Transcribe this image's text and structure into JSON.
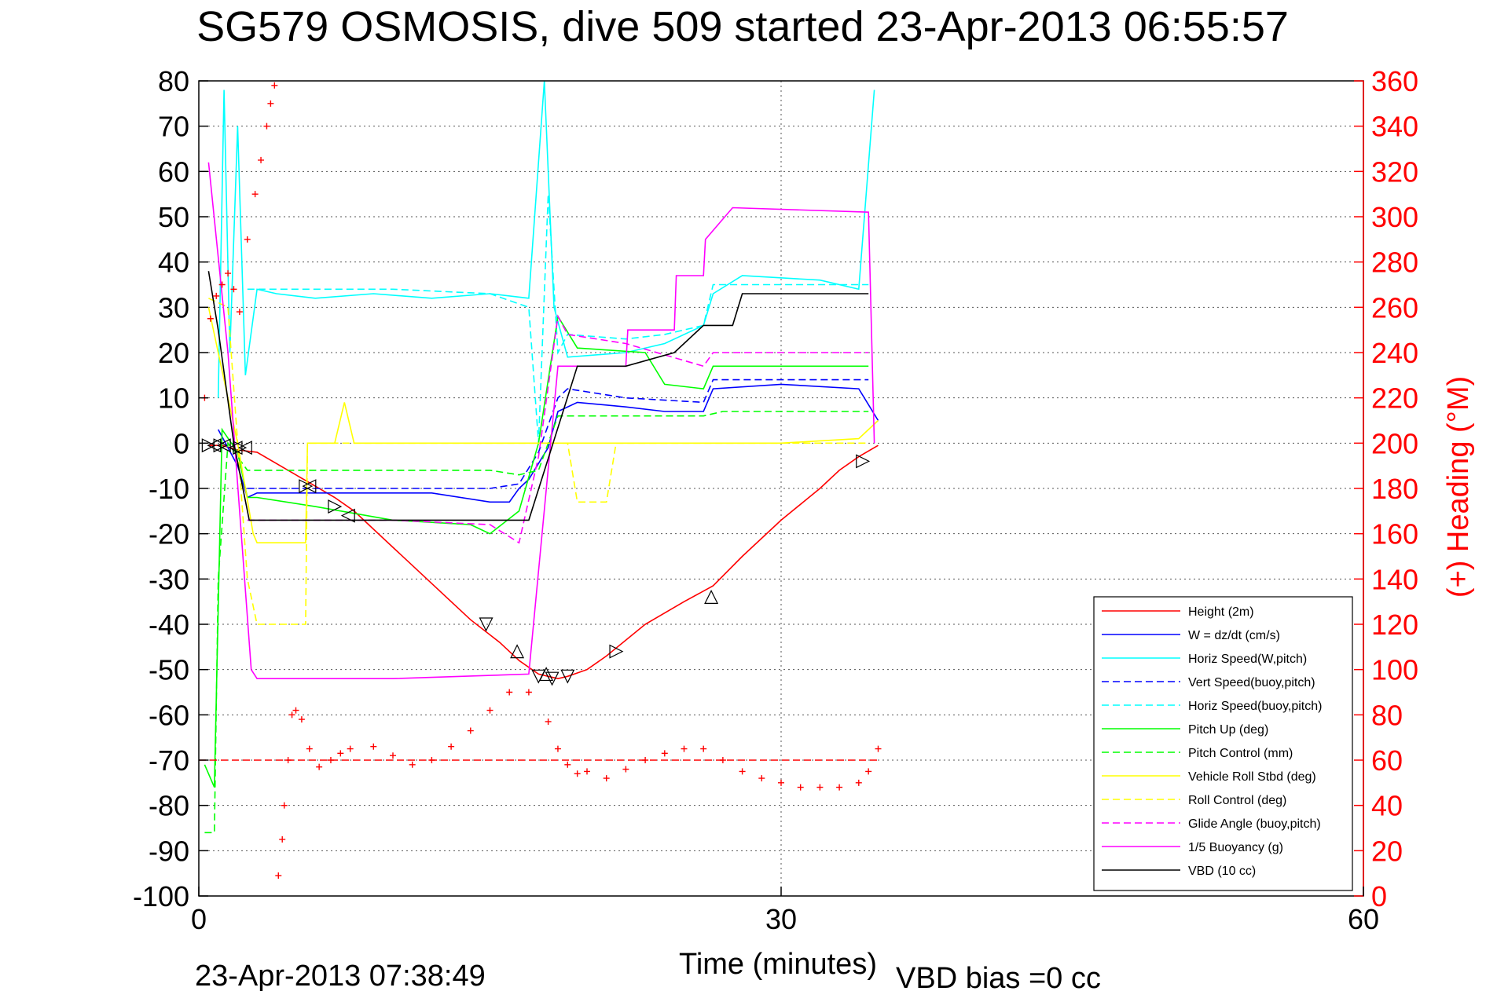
{
  "chart_data": {
    "type": "line",
    "title": "SG579 OSMOSIS, dive 509 started 23-Apr-2013 06:55:57",
    "xlabel": "Time (minutes)",
    "y2label": "(+) Heading (°M)",
    "xlim": [
      0,
      60
    ],
    "ylim": [
      -100,
      80
    ],
    "y2lim": [
      0,
      360
    ],
    "xticks": [
      "0",
      "30",
      "60"
    ],
    "yticks": [
      "80",
      "70",
      "60",
      "50",
      "40",
      "30",
      "20",
      "10",
      "0",
      "-10",
      "-20",
      "-30",
      "-40",
      "-50",
      "-60",
      "-70",
      "-80",
      "-90",
      "-100"
    ],
    "y2ticks": [
      "360",
      "340",
      "320",
      "300",
      "280",
      "260",
      "240",
      "220",
      "200",
      "180",
      "160",
      "140",
      "120",
      "100",
      "80",
      "60",
      "40",
      "20",
      "0"
    ],
    "grid": true,
    "legend_position": "bottom-right",
    "footer_time": "23-Apr-2013 07:38:49",
    "footer_bias": "VBD bias =0 cc",
    "series": [
      {
        "name": "Height (2m)",
        "color": "#ff0000",
        "style": "solid",
        "x": [
          0.5,
          1.2,
          2.0,
          3.0,
          5.0,
          6.0,
          7.0,
          8.0,
          10.0,
          12.0,
          14.0,
          15.5,
          16.5,
          17.5,
          18.0,
          18.5,
          19.0,
          20.0,
          21.0,
          23.0,
          25.0,
          26.5,
          28.0,
          30.0,
          32.0,
          33.0,
          34.0,
          35.0
        ],
        "y": [
          -0.5,
          -0.5,
          -1.5,
          -2,
          -7,
          -9.5,
          -12,
          -15,
          -23,
          -31,
          -39,
          -44,
          -48,
          -51,
          -51.5,
          -52,
          -51.5,
          -50,
          -47,
          -40,
          -35,
          -31.5,
          -25,
          -17,
          -10,
          -6,
          -3,
          -0.5
        ]
      },
      {
        "name": "W = dz/dt (cm/s)",
        "color": "#0000ff",
        "style": "solid",
        "x": [
          1.0,
          1.5,
          2.0,
          2.5,
          3.0,
          5.0,
          8.0,
          12.0,
          15.0,
          16.0,
          16.5,
          17.0,
          18.0,
          18.5,
          19.5,
          22.0,
          24.0,
          26.0,
          26.5,
          30.0,
          34.0,
          35.0
        ],
        "y": [
          3,
          -1,
          -5,
          -12,
          -11,
          -11,
          -11,
          -11,
          -13,
          -13,
          -10,
          -8,
          -1,
          7,
          9,
          8,
          7,
          7,
          12,
          13,
          12,
          5
        ]
      },
      {
        "name": "Horiz Speed(W,pitch)",
        "color": "#00ffff",
        "style": "solid",
        "x": [
          1.0,
          1.3,
          1.6,
          2.0,
          2.4,
          3.0,
          4.0,
          6.0,
          9.0,
          12.0,
          15.0,
          17.0,
          17.8,
          18.3,
          19.0,
          22.0,
          24.0,
          26.0,
          26.5,
          28.0,
          32.0,
          34.0,
          34.8
        ],
        "y": [
          10,
          78,
          20,
          70,
          15,
          34,
          33,
          32,
          33,
          32,
          33,
          32,
          80,
          30,
          19,
          20,
          22,
          26,
          33,
          37,
          36,
          34,
          78
        ]
      },
      {
        "name": "Vert Speed(buoy,pitch)",
        "color": "#0000ff",
        "style": "dashed",
        "x": [
          2.5,
          5.0,
          10.0,
          15.0,
          16.5,
          17.5,
          18.5,
          19.0,
          22.0,
          26.0,
          26.5,
          34.5
        ],
        "y": [
          -10,
          -10,
          -10,
          -10,
          -9,
          -2,
          10,
          12,
          10,
          9,
          14,
          14
        ]
      },
      {
        "name": "Horiz Speed(buoy,pitch)",
        "color": "#00ffff",
        "style": "dashed",
        "x": [
          2.5,
          5.0,
          10.0,
          15.0,
          17.0,
          17.5,
          18.0,
          18.5,
          19.0,
          22.0,
          24.0,
          26.0,
          26.5,
          34.5
        ],
        "y": [
          34,
          34,
          34,
          33,
          30,
          0,
          55,
          20,
          24,
          23,
          24,
          26,
          35,
          35
        ]
      },
      {
        "name": "Pitch Up (deg)",
        "color": "#00ff00",
        "style": "solid",
        "x": [
          0.3,
          0.8,
          1.2,
          2.0,
          2.5,
          3.0,
          6.0,
          10.0,
          14.0,
          15.0,
          16.5,
          17.5,
          18.5,
          19.5,
          23.0,
          24.0,
          26.0,
          26.5,
          34.5
        ],
        "y": [
          -71,
          -76,
          3,
          -2,
          -12,
          -12,
          -14,
          -17,
          -18,
          -20,
          -15,
          0,
          28,
          21,
          20,
          13,
          12,
          17,
          17
        ]
      },
      {
        "name": "Pitch Control (mm)",
        "color": "#00ff00",
        "style": "dashed",
        "x": [
          0.3,
          0.8,
          1.0,
          1.5,
          2.5,
          5.0,
          10.0,
          15.0,
          16.5,
          17.5,
          18.5,
          20.0,
          26.0,
          27.0,
          34.5
        ],
        "y": [
          -86,
          -86,
          -30,
          0,
          -6,
          -6,
          -6,
          -6,
          -7,
          -6,
          6,
          6,
          6,
          7,
          7
        ]
      },
      {
        "name": "Vehicle Roll Stbd (deg)",
        "color": "#ffff00",
        "style": "solid",
        "x": [
          0.5,
          1.0,
          2.0,
          2.8,
          3.0,
          5.5,
          5.6,
          7.0,
          7.5,
          8.0,
          10.0,
          15.0,
          18.0,
          20.0,
          21.0,
          30.0,
          34.0,
          35.0
        ],
        "y": [
          30,
          20,
          0,
          -20,
          -22,
          -22,
          0,
          0,
          9,
          0,
          0,
          0,
          0,
          0,
          0,
          0,
          1,
          5
        ]
      },
      {
        "name": "Roll Control (deg)",
        "color": "#ffff00",
        "style": "dashed",
        "x": [
          0.5,
          1.5,
          2.5,
          3.0,
          5.5,
          5.6,
          10.0,
          19.0,
          19.5,
          21.0,
          21.5,
          34.5
        ],
        "y": [
          32,
          30,
          -30,
          -40,
          -40,
          0,
          0,
          0,
          -13,
          -13,
          0,
          0
        ]
      },
      {
        "name": "Glide Angle (buoy,pitch)",
        "color": "#ff00ff",
        "style": "dashed",
        "x": [
          2.5,
          5.0,
          10.0,
          15.0,
          16.5,
          17.5,
          18.5,
          19.0,
          22.0,
          26.0,
          26.5,
          34.5
        ],
        "y": [
          -17,
          -17,
          -17,
          -18,
          -22,
          -3,
          28,
          24,
          22,
          17,
          20,
          20
        ]
      },
      {
        "name": "1/5 Buoyancy (g)",
        "color": "#ff00ff",
        "style": "solid",
        "x": [
          0.5,
          1.5,
          2.7,
          3.0,
          10.0,
          17.0,
          18.5,
          19.0,
          22.0,
          22.1,
          24.5,
          24.6,
          26.0,
          26.1,
          27.5,
          34.5,
          34.8
        ],
        "y": [
          62,
          20,
          -50,
          -52,
          -52,
          -51,
          17,
          17,
          17,
          25,
          25,
          37,
          37,
          45,
          52,
          51,
          0
        ]
      },
      {
        "name": "VBD (10 cc)",
        "color": "#000000",
        "style": "solid",
        "x": [
          0.5,
          1.0,
          1.8,
          2.6,
          3.0,
          10.0,
          17.0,
          19.5,
          22.0,
          24.5,
          26.0,
          27.5,
          28.0,
          34.5
        ],
        "y": [
          38,
          25,
          0,
          -17,
          -17,
          -17,
          -17,
          17,
          17,
          20,
          26,
          26,
          33,
          33
        ]
      },
      {
        "name": "",
        "color": "#ff0000",
        "style": "markers-plus",
        "axis": "right",
        "x": [
          0.3,
          0.6,
          0.9,
          1.2,
          1.5,
          1.8,
          2.1,
          2.5,
          2.9,
          3.2,
          3.5,
          3.7,
          3.9,
          4.1,
          4.3,
          4.4,
          4.6,
          4.8,
          5.0,
          5.3,
          5.7,
          6.2,
          6.8,
          7.3,
          7.8,
          9.0,
          10.0,
          11.0,
          12.0,
          13.0,
          14.0,
          15.0,
          16.0,
          17.0,
          18.0,
          18.5,
          19.0,
          19.5,
          20.0,
          21.0,
          22.0,
          23.0,
          24.0,
          25.0,
          26.0,
          27.0,
          28.0,
          29.0,
          30.0,
          31.0,
          32.0,
          33.0,
          34.0,
          34.5,
          35.0
        ],
        "y": [
          220,
          255,
          265,
          270,
          275,
          268,
          258,
          290,
          310,
          325,
          340,
          350,
          358,
          9,
          25,
          40,
          60,
          80,
          82,
          78,
          65,
          57,
          60,
          63,
          65,
          66,
          62,
          58,
          60,
          66,
          73,
          82,
          90,
          90,
          77,
          65,
          58,
          54,
          55,
          52,
          56,
          60,
          63,
          65,
          65,
          60,
          55,
          52,
          50,
          48,
          48,
          48,
          50,
          55,
          65
        ]
      },
      {
        "name": "",
        "color": "#ff0000",
        "style": "dashed",
        "axis": "right",
        "x": [
          0,
          35
        ],
        "y": [
          60,
          60
        ]
      }
    ],
    "markers": {
      "left_triangles": [
        [
          0.8,
          -0.5
        ],
        [
          1.3,
          -0.5
        ],
        [
          1.9,
          -1
        ],
        [
          2.4,
          -1
        ],
        [
          5.7,
          -9.5
        ],
        [
          7.7,
          -16
        ]
      ],
      "right_triangles": [
        [
          0.5,
          -0.5
        ],
        [
          1.1,
          -0.5
        ],
        [
          2.1,
          -1
        ],
        [
          5.5,
          -9.5
        ],
        [
          7.0,
          -14
        ],
        [
          21.5,
          -46
        ],
        [
          34.2,
          -4
        ]
      ],
      "down_triangles": [
        [
          14.8,
          -40
        ],
        [
          17.5,
          -51.5
        ],
        [
          18.2,
          -52
        ],
        [
          19.0,
          -51.5
        ]
      ],
      "up_triangles": [
        [
          16.4,
          -46
        ],
        [
          17.9,
          -51
        ],
        [
          26.4,
          -34
        ]
      ]
    }
  },
  "legend": {
    "entries": [
      "Height (2m)",
      "W = dz/dt (cm/s)",
      "Horiz Speed(W,pitch)",
      "Vert Speed(buoy,pitch)",
      "Horiz Speed(buoy,pitch)",
      "Pitch Up (deg)",
      "Pitch Control (mm)",
      "Vehicle Roll Stbd (deg)",
      "Roll Control (deg)",
      "Glide Angle (buoy,pitch)",
      "1/5 Buoyancy (g)",
      "VBD (10 cc)"
    ]
  }
}
